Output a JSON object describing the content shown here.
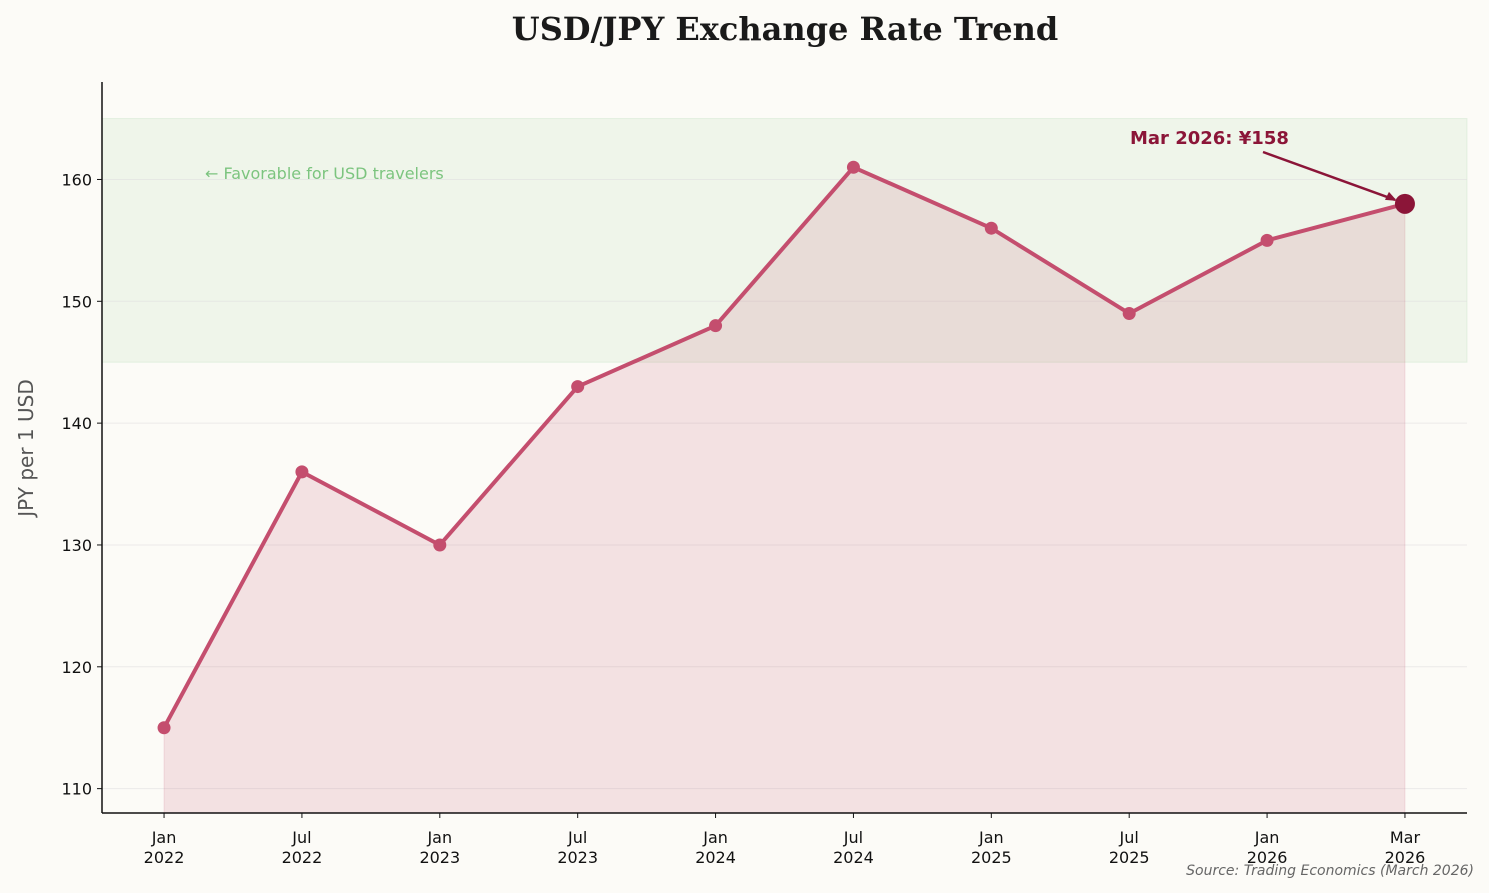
{
  "chart_data": {
    "type": "line",
    "title": "USD/JPY Exchange Rate Trend",
    "xlabel": "",
    "ylabel": "JPY per 1 USD",
    "categories": [
      [
        "Jan",
        "2022"
      ],
      [
        "Jul",
        "2022"
      ],
      [
        "Jan",
        "2023"
      ],
      [
        "Jul",
        "2023"
      ],
      [
        "Jan",
        "2024"
      ],
      [
        "Jul",
        "2024"
      ],
      [
        "Jan",
        "2025"
      ],
      [
        "Jul",
        "2025"
      ],
      [
        "Jan",
        "2026"
      ],
      [
        "Mar",
        "2026"
      ]
    ],
    "series": [
      {
        "name": "USD/JPY",
        "values": [
          115,
          136,
          130,
          143,
          148,
          161,
          156,
          149,
          155,
          158
        ],
        "color": "#c44e6e"
      }
    ],
    "ylim": [
      108,
      168
    ],
    "yticks": [
      110,
      120,
      130,
      140,
      150,
      160
    ],
    "grid": true,
    "shaded_band": {
      "from": 145,
      "to": 165,
      "label": "← Favorable for USD travelers",
      "color": "#7cc47f"
    },
    "annotation": {
      "text": "Mar 2026: ¥158",
      "index": 9,
      "value": 158,
      "color": "#8b1538"
    },
    "source": "Source: Trading Economics (March 2026)"
  }
}
